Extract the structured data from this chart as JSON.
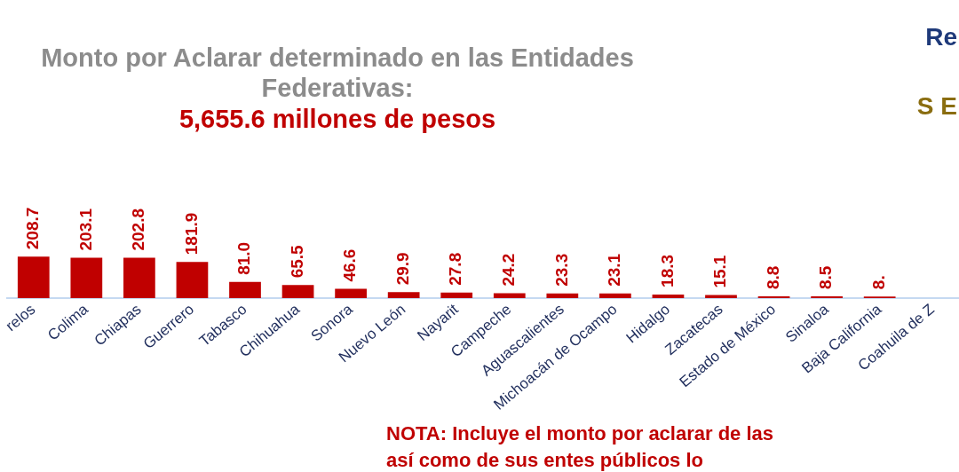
{
  "chart_data": {
    "type": "bar",
    "title": "Monto por Aclarar determinado en las Entidades Federativas:",
    "subtitle": "5,655.6 millones de pesos",
    "categories": [
      "relos",
      "Colima",
      "Chiapas",
      "Guerrero",
      "Tabasco",
      "Chihuahua",
      "Sonora",
      "Nuevo León",
      "Nayarit",
      "Campeche",
      "Aguascalientes",
      "Michoacán de Ocampo",
      "Hidalgo",
      "Zacatecas",
      "Estado de México",
      "Sinaloa",
      "Baja California",
      "Coahuila de Z"
    ],
    "values": [
      208.7,
      203.1,
      202.8,
      181.9,
      81.0,
      65.5,
      46.6,
      29.9,
      27.8,
      24.2,
      23.3,
      23.1,
      18.3,
      15.1,
      8.8,
      8.5,
      8.3,
      null
    ],
    "value_labels": [
      "208.7",
      "203.1",
      "202.8",
      "181.9",
      "81.0",
      "65.5",
      "46.6",
      "29.9",
      "27.8",
      "24.2",
      "23.3",
      "23.1",
      "18.3",
      "15.1",
      "8.8",
      "8.5",
      "8.",
      null
    ],
    "color": "#c00000",
    "annotations": [
      "Re",
      "S E",
      "NOTA: Incluye el monto por aclarar de las\nasí como de sus entes públicos lo"
    ]
  }
}
